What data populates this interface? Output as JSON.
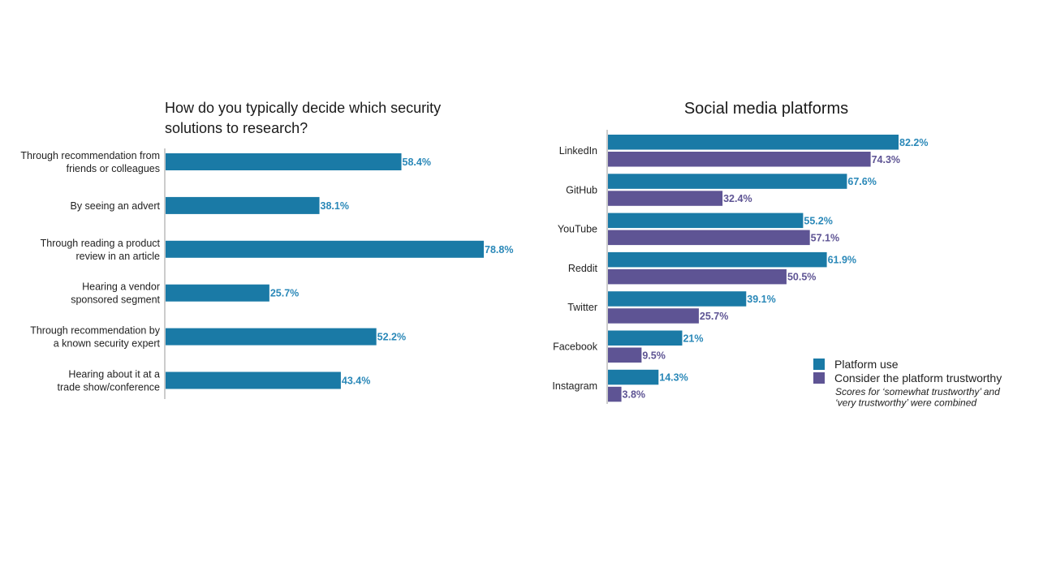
{
  "colors": {
    "primary": "#1a7aa6",
    "secondary": "#5e5494",
    "primary_label": "#2a88b8",
    "secondary_label": "#5e5494",
    "axis": "#999999"
  },
  "chart_data": [
    {
      "type": "bar",
      "orientation": "horizontal",
      "title_lines": [
        "How do you typically decide which security",
        "solutions to research?"
      ],
      "categories": [
        [
          "Through recommendation from",
          "friends or colleagues"
        ],
        [
          "By seeing an advert"
        ],
        [
          "Through reading a product",
          "review in an article"
        ],
        [
          "Hearing a vendor",
          "sponsored segment"
        ],
        [
          "Through recommendation by",
          "a known security expert"
        ],
        [
          "Hearing about it at a",
          "trade show/conference"
        ]
      ],
      "values": [
        58.4,
        38.1,
        78.8,
        25.7,
        52.2,
        43.4
      ],
      "value_labels": [
        "58.4%",
        "38.1%",
        "78.8%",
        "25.7%",
        "52.2%",
        "43.4%"
      ],
      "unit": "%",
      "xlim": [
        0,
        100
      ],
      "grid": false,
      "legend": null
    },
    {
      "type": "bar",
      "orientation": "horizontal",
      "title": "Social media platforms",
      "categories": [
        "LinkedIn",
        "GitHub",
        "YouTube",
        "Reddit",
        "Twitter",
        "Facebook",
        "Instagram"
      ],
      "series": [
        {
          "name": "Platform use",
          "values": [
            82.2,
            67.6,
            55.2,
            61.9,
            39.1,
            21,
            14.3
          ],
          "value_labels": [
            "82.2%",
            "67.6%",
            "55.2%",
            "61.9%",
            "39.1%",
            "21%",
            "14.3%"
          ]
        },
        {
          "name": "Consider the platform trustworthy",
          "values": [
            74.3,
            32.4,
            57.1,
            50.5,
            25.7,
            9.5,
            3.8
          ],
          "value_labels": [
            "74.3%",
            "32.4%",
            "57.1%",
            "50.5%",
            "25.7%",
            "9.5%",
            "3.8%"
          ]
        }
      ],
      "legend_note_lines": [
        "Scores for ‘somewhat trustworthy’ and",
        "‘very trustworthy’ were combined"
      ],
      "legend_position": "bottom-right",
      "unit": "%",
      "xlim": [
        0,
        100
      ],
      "grid": false
    }
  ]
}
